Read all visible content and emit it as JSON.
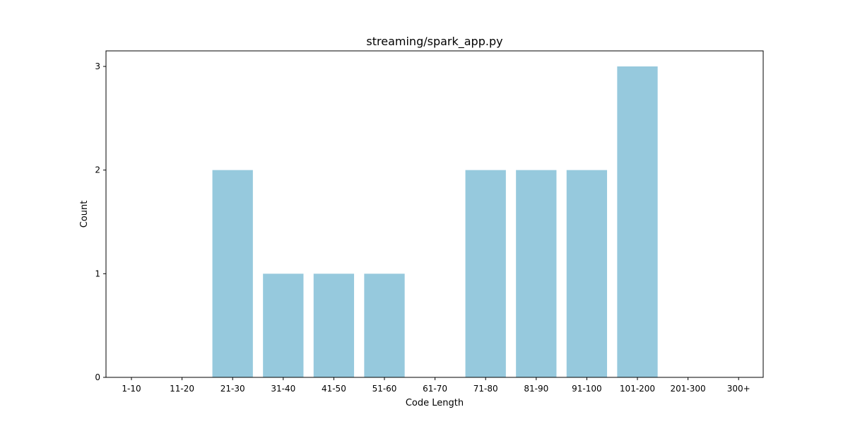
{
  "chart_data": {
    "type": "bar",
    "title": "streaming/spark_app.py",
    "xlabel": "Code Length",
    "ylabel": "Count",
    "categories": [
      "1-10",
      "11-20",
      "21-30",
      "31-40",
      "41-50",
      "51-60",
      "61-70",
      "71-80",
      "81-90",
      "91-100",
      "101-200",
      "201-300",
      "300+"
    ],
    "values": [
      0,
      0,
      2,
      1,
      1,
      1,
      0,
      2,
      2,
      2,
      3,
      0,
      0
    ],
    "ylim": [
      0,
      3.15
    ],
    "yticks": [
      0,
      1,
      2,
      3
    ],
    "bar_color": "#96c9dd",
    "grid": false
  }
}
